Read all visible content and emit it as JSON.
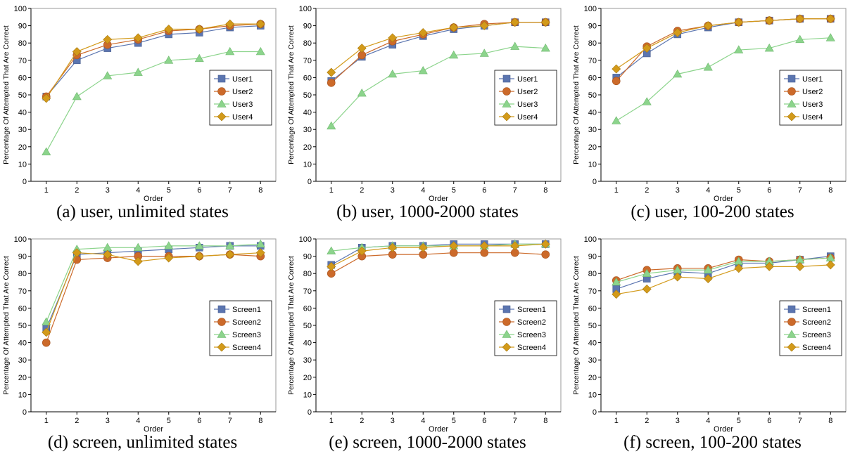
{
  "figure": {
    "series_colors": [
      "#5b75b0",
      "#cc6a2a",
      "#8cd48c",
      "#d39a1a"
    ],
    "markers": [
      "square",
      "circle",
      "triangle",
      "diamond"
    ]
  },
  "chart_data": [
    {
      "type": "line",
      "caption": "(a) user, unlimited states",
      "xlabel": "Order",
      "ylabel": "Percentage Of Attempted That Are Correct",
      "ylim": [
        0,
        100
      ],
      "yticks": [
        0,
        10,
        20,
        30,
        40,
        50,
        60,
        70,
        80,
        90,
        100
      ],
      "x": [
        1,
        2,
        3,
        4,
        5,
        6,
        7,
        8
      ],
      "legend_position": "right-middle",
      "series": [
        {
          "name": "User1",
          "values": [
            49,
            70,
            77,
            80,
            85,
            86,
            89,
            90
          ]
        },
        {
          "name": "User2",
          "values": [
            49,
            73,
            79,
            82,
            87,
            88,
            90,
            91
          ]
        },
        {
          "name": "User3",
          "values": [
            17,
            49,
            61,
            63,
            70,
            71,
            75,
            75
          ]
        },
        {
          "name": "User4",
          "values": [
            48,
            75,
            82,
            83,
            88,
            88,
            91,
            91
          ]
        }
      ]
    },
    {
      "type": "line",
      "caption": "(b) user, 1000-2000 states",
      "xlabel": "Order",
      "ylabel": "Percentage Of Attempted That Are Correct",
      "ylim": [
        0,
        100
      ],
      "yticks": [
        0,
        10,
        20,
        30,
        40,
        50,
        60,
        70,
        80,
        90,
        100
      ],
      "x": [
        1,
        2,
        3,
        4,
        5,
        6,
        7,
        8
      ],
      "legend_position": "right-middle",
      "series": [
        {
          "name": "User1",
          "values": [
            58,
            72,
            79,
            84,
            88,
            90,
            92,
            92
          ]
        },
        {
          "name": "User2",
          "values": [
            57,
            73,
            81,
            85,
            89,
            91,
            92,
            92
          ]
        },
        {
          "name": "User3",
          "values": [
            32,
            51,
            62,
            64,
            73,
            74,
            78,
            77
          ]
        },
        {
          "name": "User4",
          "values": [
            63,
            77,
            83,
            86,
            89,
            90,
            92,
            92
          ]
        }
      ]
    },
    {
      "type": "line",
      "caption": "(c) user, 100-200 states",
      "xlabel": "Order",
      "ylabel": "Percentage Of Attempted That Are Correct",
      "ylim": [
        0,
        100
      ],
      "yticks": [
        0,
        10,
        20,
        30,
        40,
        50,
        60,
        70,
        80,
        90,
        100
      ],
      "x": [
        1,
        2,
        3,
        4,
        5,
        6,
        7,
        8
      ],
      "legend_position": "right-middle",
      "series": [
        {
          "name": "User1",
          "values": [
            60,
            74,
            85,
            89,
            92,
            93,
            94,
            94
          ]
        },
        {
          "name": "User2",
          "values": [
            58,
            78,
            87,
            90,
            92,
            93,
            94,
            94
          ]
        },
        {
          "name": "User3",
          "values": [
            35,
            46,
            62,
            66,
            76,
            77,
            82,
            83
          ]
        },
        {
          "name": "User4",
          "values": [
            65,
            77,
            86,
            90,
            92,
            93,
            94,
            94
          ]
        }
      ]
    },
    {
      "type": "line",
      "caption": "(d) screen, unlimited states",
      "xlabel": "Order",
      "ylabel": "Percentage Of Attempted That Are Correct",
      "ylim": [
        0,
        100
      ],
      "yticks": [
        0,
        10,
        20,
        30,
        40,
        50,
        60,
        70,
        80,
        90,
        100
      ],
      "x": [
        1,
        2,
        3,
        4,
        5,
        6,
        7,
        8
      ],
      "legend_position": "right-middle",
      "series": [
        {
          "name": "Screen1",
          "values": [
            48,
            91,
            92,
            93,
            94,
            95,
            96,
            96
          ]
        },
        {
          "name": "Screen2",
          "values": [
            40,
            88,
            89,
            90,
            90,
            90,
            91,
            90
          ]
        },
        {
          "name": "Screen3",
          "values": [
            52,
            94,
            95,
            95,
            96,
            96,
            96,
            97
          ]
        },
        {
          "name": "Screen4",
          "values": [
            46,
            92,
            91,
            87,
            89,
            90,
            91,
            92
          ]
        }
      ]
    },
    {
      "type": "line",
      "caption": "(e) screen, 1000-2000 states",
      "xlabel": "Order",
      "ylabel": "Percentage Of Attempted That Are Correct",
      "ylim": [
        0,
        100
      ],
      "yticks": [
        0,
        10,
        20,
        30,
        40,
        50,
        60,
        70,
        80,
        90,
        100
      ],
      "x": [
        1,
        2,
        3,
        4,
        5,
        6,
        7,
        8
      ],
      "legend_position": "right-middle",
      "series": [
        {
          "name": "Screen1",
          "values": [
            85,
            95,
            96,
            96,
            97,
            97,
            97,
            97
          ]
        },
        {
          "name": "Screen2",
          "values": [
            80,
            90,
            91,
            91,
            92,
            92,
            92,
            91
          ]
        },
        {
          "name": "Screen3",
          "values": [
            93,
            95,
            96,
            96,
            96,
            96,
            97,
            97
          ]
        },
        {
          "name": "Screen4",
          "values": [
            84,
            93,
            95,
            95,
            96,
            96,
            96,
            97
          ]
        }
      ]
    },
    {
      "type": "line",
      "caption": "(f) screen, 100-200 states",
      "xlabel": "Order",
      "ylabel": "Percentage Of Attempted That Are Correct",
      "ylim": [
        0,
        100
      ],
      "yticks": [
        0,
        10,
        20,
        30,
        40,
        50,
        60,
        70,
        80,
        90,
        100
      ],
      "x": [
        1,
        2,
        3,
        4,
        5,
        6,
        7,
        8
      ],
      "legend_position": "right-middle",
      "series": [
        {
          "name": "Screen1",
          "values": [
            71,
            77,
            81,
            80,
            86,
            86,
            88,
            90
          ]
        },
        {
          "name": "Screen2",
          "values": [
            76,
            82,
            83,
            83,
            88,
            87,
            88,
            89
          ]
        },
        {
          "name": "Screen3",
          "values": [
            75,
            80,
            82,
            82,
            87,
            87,
            88,
            89
          ]
        },
        {
          "name": "Screen4",
          "values": [
            68,
            71,
            78,
            77,
            83,
            84,
            84,
            85
          ]
        }
      ]
    }
  ]
}
